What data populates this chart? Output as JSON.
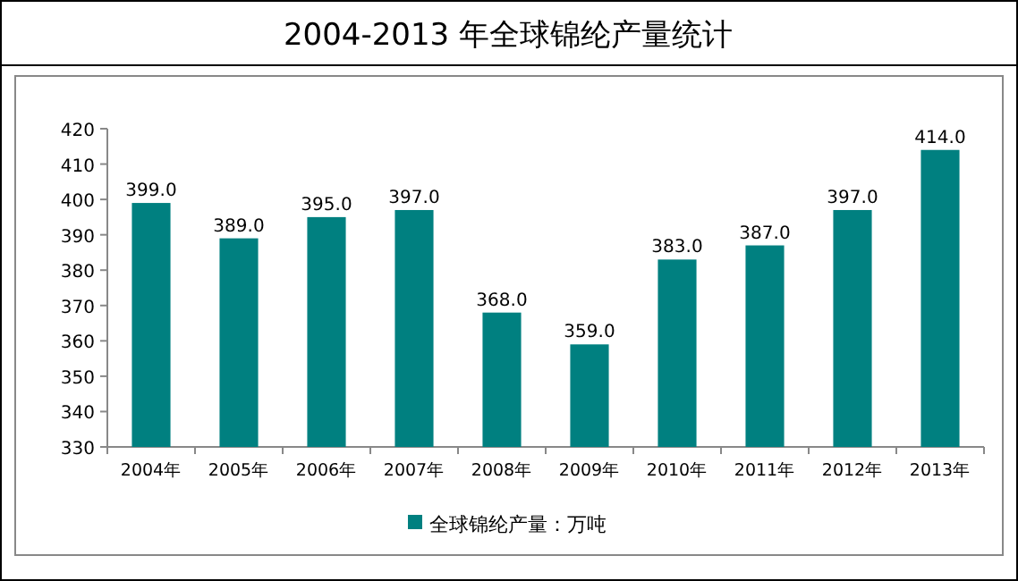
{
  "chart_data": {
    "type": "bar",
    "title": "2004-2013 年全球锦纶产量统计",
    "categories": [
      "2004年",
      "2005年",
      "2006年",
      "2007年",
      "2008年",
      "2009年",
      "2010年",
      "2011年",
      "2012年",
      "2013年"
    ],
    "series": [
      {
        "name": "全球锦纶产量：万吨",
        "color": "#008080",
        "values": [
          399,
          389,
          395,
          397,
          368,
          359,
          383,
          387,
          397,
          414
        ],
        "value_labels": [
          "399.0",
          "389.0",
          "395.0",
          "397.0",
          "368.0",
          "359.0",
          "383.0",
          "387.0",
          "397.0",
          "414.0"
        ]
      }
    ],
    "ylim": [
      330,
      420
    ],
    "yticks": [
      330,
      340,
      350,
      360,
      370,
      380,
      390,
      400,
      410,
      420
    ],
    "grid": false,
    "legend": "bottom"
  }
}
